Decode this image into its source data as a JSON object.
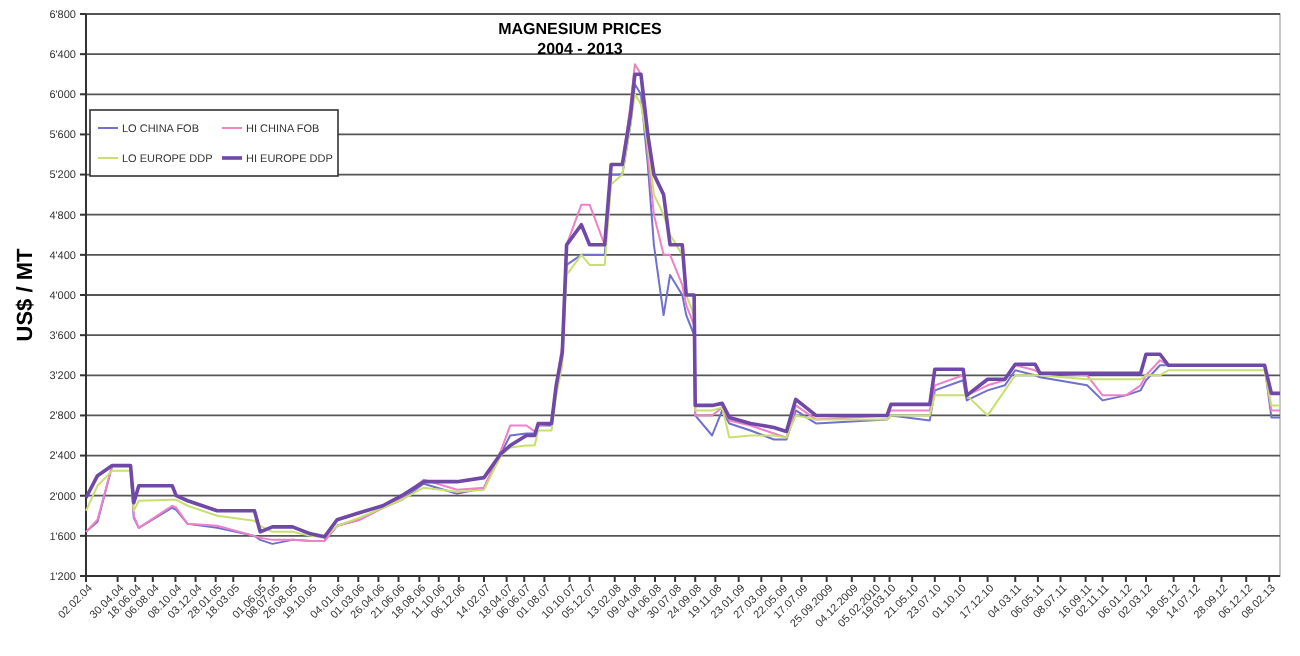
{
  "chart_data": {
    "type": "line",
    "title": "MAGNESIUM PRICES",
    "subtitle": "2004 - 2013",
    "ylabel": "US$ / MT",
    "x": [
      "2004-02-02",
      "2004-03-05",
      "2004-04-15",
      "2004-06-05",
      "2004-06-14",
      "2004-06-28",
      "2004-09-29",
      "2004-10-10",
      "2004-11-11",
      "2005-02-01",
      "2005-05-16",
      "2005-06-01",
      "2005-07-05",
      "2005-08-30",
      "2005-10-19",
      "2005-11-27",
      "2006-01-01",
      "2006-03-04",
      "2006-05-08",
      "2006-06-30",
      "2006-08-30",
      "2006-12-01",
      "2007-02-14",
      "2007-04-02",
      "2007-04-28",
      "2007-06-12",
      "2007-07-05",
      "2007-07-15",
      "2007-08-21",
      "2007-09-03",
      "2007-09-20",
      "2007-10-02",
      "2007-11-12",
      "2007-12-05",
      "2008-01-16",
      "2008-02-03",
      "2008-03-05",
      "2008-03-28",
      "2008-04-09",
      "2008-04-26",
      "2008-05-15",
      "2008-06-01",
      "2008-06-28",
      "2008-07-16",
      "2008-08-19",
      "2008-08-30",
      "2008-09-21",
      "2008-09-24",
      "2008-11-10",
      "2008-12-08",
      "2008-12-28",
      "2009-02-25",
      "2009-05-01",
      "2009-06-05",
      "2009-07-01",
      "2009-08-26",
      "2010-03-12",
      "2010-03-23",
      "2010-07-09",
      "2010-07-23",
      "2010-10-10",
      "2010-10-20",
      "2010-12-17",
      "2011-02-03",
      "2011-03-04",
      "2011-04-28",
      "2011-05-12",
      "2011-09-20",
      "2011-11-02",
      "2012-01-06",
      "2012-02-16",
      "2012-03-02",
      "2012-04-10",
      "2012-05-03",
      "2012-11-25",
      "2013-01-26",
      "2013-02-14",
      "2013-03-10"
    ],
    "series": [
      {
        "name": "LO CHINA FOB",
        "color": "#7070d0",
        "values": [
          1640,
          1740,
          2300,
          2300,
          1780,
          1680,
          1880,
          1860,
          1720,
          1680,
          1600,
          1560,
          1520,
          1560,
          1550,
          1550,
          1700,
          1760,
          1880,
          1960,
          2120,
          2020,
          2080,
          2420,
          2600,
          2620,
          2620,
          2700,
          2700,
          3050,
          3400,
          4300,
          4400,
          4400,
          4400,
          5200,
          5200,
          5700,
          6100,
          6000,
          5300,
          4500,
          3800,
          4200,
          4000,
          3800,
          3600,
          2800,
          2600,
          2850,
          2720,
          2650,
          2560,
          2560,
          2850,
          2720,
          2760,
          2800,
          2750,
          3050,
          3150,
          2950,
          3050,
          3100,
          3250,
          3200,
          3180,
          3100,
          2950,
          3000,
          3050,
          3150,
          3300,
          3300,
          3300,
          3300,
          2780,
          2780
        ]
      },
      {
        "name": "HI CHINA FOB",
        "color": "#f080c8",
        "values": [
          1640,
          1760,
          2300,
          2300,
          1800,
          1680,
          1900,
          1880,
          1720,
          1700,
          1600,
          1580,
          1560,
          1560,
          1550,
          1550,
          1700,
          1760,
          1880,
          1980,
          2160,
          2060,
          2080,
          2450,
          2700,
          2700,
          2640,
          2700,
          2720,
          3100,
          3500,
          4500,
          4900,
          4900,
          4500,
          5300,
          5300,
          5900,
          6300,
          6200,
          5400,
          4800,
          4400,
          4400,
          4100,
          3900,
          3700,
          2800,
          2800,
          2880,
          2750,
          2700,
          2620,
          2580,
          2900,
          2760,
          2800,
          2850,
          2850,
          3100,
          3200,
          3000,
          3100,
          3150,
          3300,
          3250,
          3220,
          3200,
          3000,
          3000,
          3100,
          3200,
          3350,
          3300,
          3300,
          3300,
          2850,
          2850
        ]
      },
      {
        "name": "LO EUROPE DDP",
        "color": "#c8e070",
        "values": [
          1850,
          2100,
          2250,
          2250,
          1850,
          1950,
          1960,
          1960,
          1900,
          1800,
          1750,
          1700,
          1640,
          1640,
          1600,
          1580,
          1700,
          1780,
          1880,
          1960,
          2080,
          2040,
          2060,
          2400,
          2480,
          2500,
          2500,
          2650,
          2650,
          3000,
          3300,
          4200,
          4400,
          4300,
          4300,
          5100,
          5200,
          5700,
          6000,
          5900,
          5500,
          5000,
          4800,
          4600,
          4400,
          4000,
          3800,
          2850,
          2850,
          2880,
          2580,
          2600,
          2600,
          2580,
          2800,
          2760,
          2760,
          2800,
          2800,
          3000,
          3000,
          3000,
          2800,
          3050,
          3200,
          3200,
          3200,
          3160,
          3160,
          3160,
          3160,
          3200,
          3200,
          3250,
          3250,
          3250,
          2900,
          2900
        ]
      },
      {
        "name": "HI EUROPE  DDP",
        "color": "#7048a8",
        "values": [
          1980,
          2200,
          2300,
          2300,
          1930,
          2100,
          2100,
          2000,
          1950,
          1850,
          1850,
          1640,
          1690,
          1690,
          1620,
          1590,
          1760,
          1830,
          1900,
          2000,
          2140,
          2140,
          2180,
          2420,
          2500,
          2600,
          2600,
          2720,
          2720,
          3100,
          3430,
          4500,
          4700,
          4500,
          4500,
          5300,
          5300,
          5800,
          6200,
          6200,
          5600,
          5200,
          5000,
          4500,
          4500,
          4000,
          4000,
          2900,
          2900,
          2920,
          2780,
          2720,
          2680,
          2640,
          2960,
          2800,
          2800,
          2910,
          2910,
          3260,
          3260,
          3000,
          3160,
          3160,
          3310,
          3310,
          3220,
          3220,
          3220,
          3220,
          3220,
          3410,
          3410,
          3300,
          3300,
          3300,
          3020,
          3020
        ]
      }
    ],
    "xlim": [
      "2004-02-02",
      "2013-03-10"
    ],
    "xticks": [
      {
        "value": "2004-02-02",
        "label": "02.02.04"
      },
      {
        "value": "2004-04-30",
        "label": "30.04.04"
      },
      {
        "value": "2004-06-18",
        "label": "18.06.04"
      },
      {
        "value": "2004-08-06",
        "label": "06.08.04"
      },
      {
        "value": "2004-10-08",
        "label": "08.10.04"
      },
      {
        "value": "2004-12-03",
        "label": "03.12.04"
      },
      {
        "value": "2005-01-28",
        "label": "28.01.05"
      },
      {
        "value": "2005-03-18",
        "label": "18.03.05"
      },
      {
        "value": "2005-06-01",
        "label": "01.06.05"
      },
      {
        "value": "2005-07-08",
        "label": "08.07.05"
      },
      {
        "value": "2005-08-26",
        "label": "26.08.05"
      },
      {
        "value": "2005-10-19",
        "label": "19.10.05"
      },
      {
        "value": "2006-01-04",
        "label": "04.01.06"
      },
      {
        "value": "2006-03-01",
        "label": "01.03.06"
      },
      {
        "value": "2006-04-26",
        "label": "26.04.06"
      },
      {
        "value": "2006-06-21",
        "label": "21.06.06"
      },
      {
        "value": "2006-08-18",
        "label": "18.08.06"
      },
      {
        "value": "2006-10-11",
        "label": "11.10.06"
      },
      {
        "value": "2006-12-06",
        "label": "06.12.06"
      },
      {
        "value": "2007-02-14",
        "label": "14.02.07"
      },
      {
        "value": "2007-04-18",
        "label": "18.04.07"
      },
      {
        "value": "2007-06-06",
        "label": "06.06.07"
      },
      {
        "value": "2007-08-01",
        "label": "01.08.07"
      },
      {
        "value": "2007-10-10",
        "label": "10.10.07"
      },
      {
        "value": "2007-12-05",
        "label": "05.12.07"
      },
      {
        "value": "2008-02-13",
        "label": "13.02.08"
      },
      {
        "value": "2008-04-09",
        "label": "09.04.08"
      },
      {
        "value": "2008-06-04",
        "label": "04.06.08"
      },
      {
        "value": "2008-07-30",
        "label": "30.07.08"
      },
      {
        "value": "2008-09-24",
        "label": "24.09.08"
      },
      {
        "value": "2008-11-19",
        "label": "19.11.08"
      },
      {
        "value": "2009-01-23",
        "label": "23.01.09"
      },
      {
        "value": "2009-03-27",
        "label": "27.03.09"
      },
      {
        "value": "2009-05-22",
        "label": "22.05.09"
      },
      {
        "value": "2009-07-17",
        "label": "17.07.09"
      },
      {
        "value": "2009-09-25",
        "label": "25.09.2009"
      },
      {
        "value": "2009-12-04",
        "label": "04.12.2009"
      },
      {
        "value": "2010-02-05",
        "label": "05.02.2010"
      },
      {
        "value": "2010-03-19",
        "label": "19.03.10"
      },
      {
        "value": "2010-05-21",
        "label": "21.05.10"
      },
      {
        "value": "2010-07-23",
        "label": "23.07.10"
      },
      {
        "value": "2010-10-01",
        "label": "01.10.10"
      },
      {
        "value": "2010-12-17",
        "label": "17.12.10"
      },
      {
        "value": "2011-03-04",
        "label": "04.03.11"
      },
      {
        "value": "2011-05-06",
        "label": "06.05.11"
      },
      {
        "value": "2011-07-08",
        "label": "08.07.11"
      },
      {
        "value": "2011-09-16",
        "label": "16.09.11"
      },
      {
        "value": "2011-11-02",
        "label": "02.11.11"
      },
      {
        "value": "2012-01-06",
        "label": "06.01.12"
      },
      {
        "value": "2012-03-02",
        "label": "02.03.12"
      },
      {
        "value": "2012-05-18",
        "label": "18.05.12"
      },
      {
        "value": "2012-07-14",
        "label": "14.07.12"
      },
      {
        "value": "2012-09-28",
        "label": "28.09.12"
      },
      {
        "value": "2012-12-06",
        "label": "06.12.12"
      },
      {
        "value": "2013-02-08",
        "label": "08.02.13"
      }
    ],
    "ylim": [
      1200,
      6800
    ],
    "yticks": [
      {
        "value": 1200,
        "label": "1'200"
      },
      {
        "value": 1600,
        "label": "1'600"
      },
      {
        "value": 2000,
        "label": "2'000"
      },
      {
        "value": 2400,
        "label": "2'400"
      },
      {
        "value": 2800,
        "label": "2'800"
      },
      {
        "value": 3200,
        "label": "3'200"
      },
      {
        "value": 3600,
        "label": "3'600"
      },
      {
        "value": 4000,
        "label": "4'000"
      },
      {
        "value": 4400,
        "label": "4'400"
      },
      {
        "value": 4800,
        "label": "4'800"
      },
      {
        "value": 5200,
        "label": "5'200"
      },
      {
        "value": 5600,
        "label": "5'600"
      },
      {
        "value": 6000,
        "label": "6'000"
      },
      {
        "value": 6400,
        "label": "6'400"
      },
      {
        "value": 6800,
        "label": "6'800"
      }
    ],
    "grid": "y",
    "legend": "top left",
    "marker": "none",
    "line_style": "solid"
  }
}
